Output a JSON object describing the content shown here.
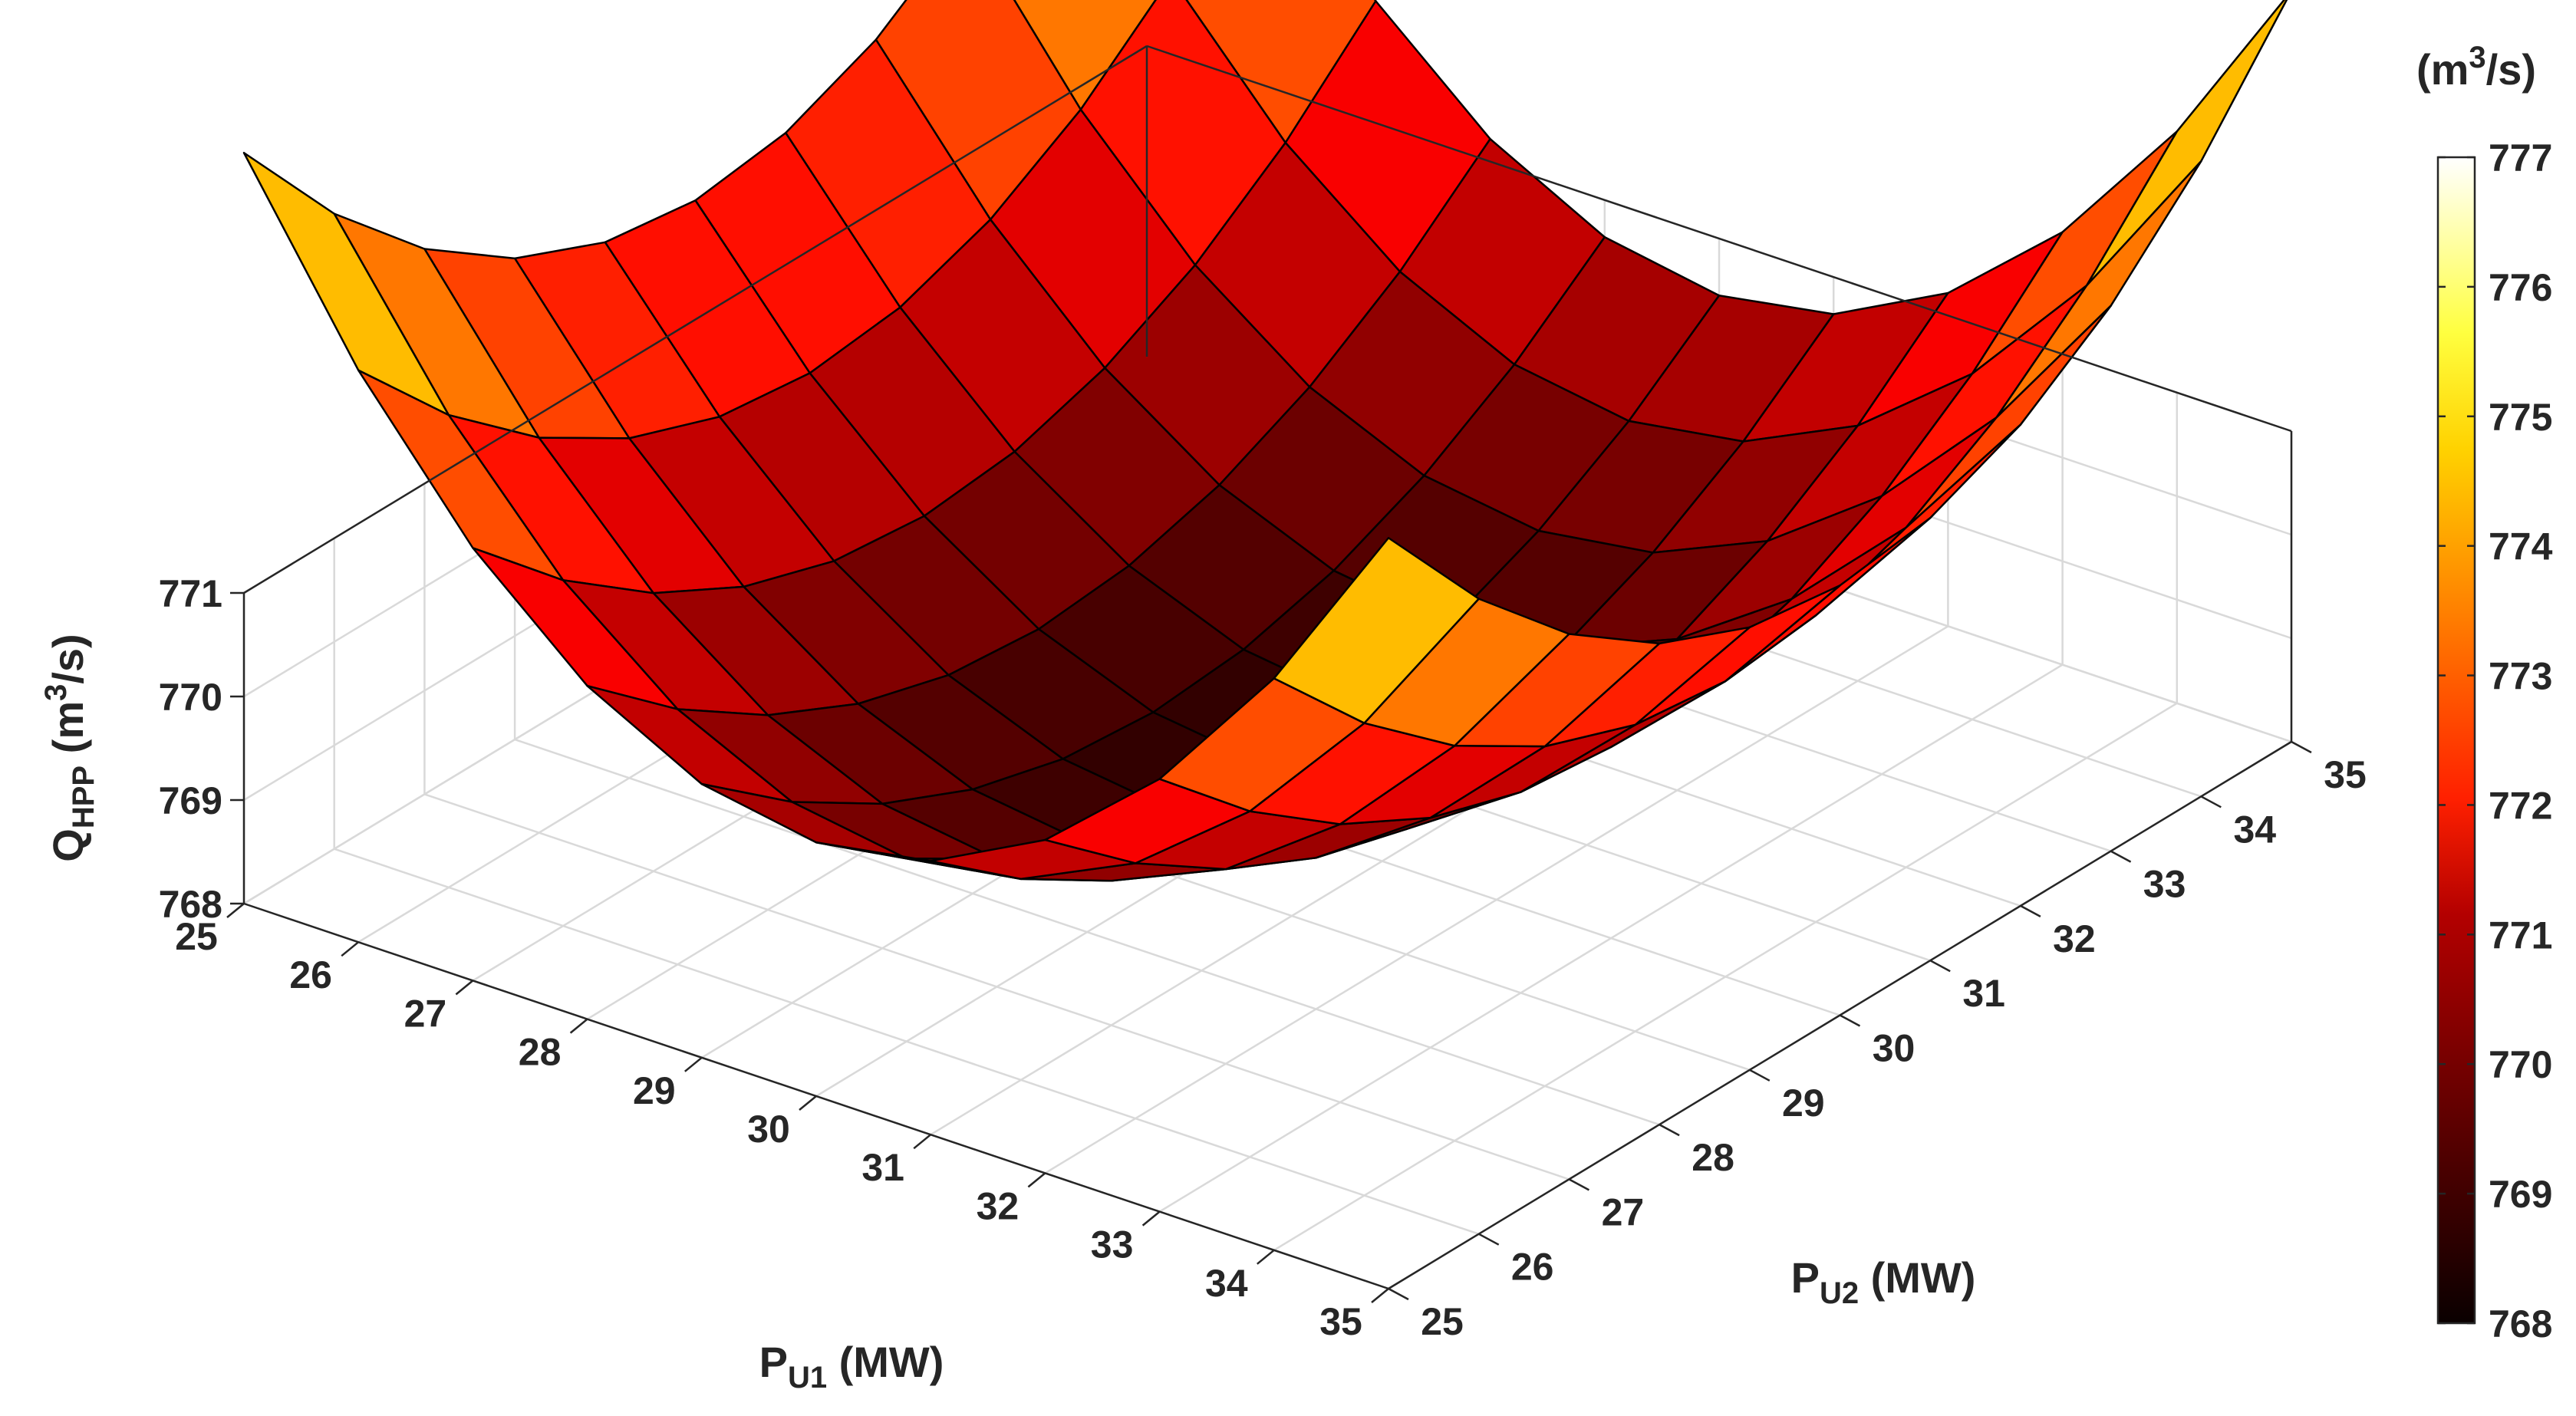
{
  "chart_data": {
    "type": "surface",
    "title": "",
    "x": [
      25,
      26,
      27,
      28,
      29,
      30,
      31,
      32,
      33,
      34,
      35
    ],
    "y": [
      25,
      26,
      27,
      28,
      29,
      30,
      31,
      32,
      33,
      34,
      35
    ],
    "z_formula_note": "",
    "xlabel": {
      "main": "P",
      "sub": "U1",
      "tail": " (MW)"
    },
    "ylabel": {
      "main": "P",
      "sub": "U2",
      "tail": " (MW)"
    },
    "zlabel": {
      "main": "Q",
      "sub": "HPP",
      "tail_pre": " (m",
      "sup": "3",
      "tail_post": "/s)"
    },
    "xlim": [
      25,
      35
    ],
    "ylim": [
      25,
      35
    ],
    "zlim": [
      768,
      771
    ],
    "xticks": [
      "25",
      "26",
      "27",
      "28",
      "29",
      "30",
      "31",
      "32",
      "33",
      "34",
      "35"
    ],
    "yticks": [
      "25",
      "26",
      "27",
      "28",
      "29",
      "30",
      "31",
      "32",
      "33",
      "34",
      "35"
    ],
    "zticks": [
      "768",
      "769",
      "770",
      "771"
    ],
    "grid": true,
    "colormap": "hot",
    "colorbar": {
      "title_pre": "(m",
      "title_sup": "3",
      "title_post": "/s)",
      "range": [
        768,
        777
      ],
      "ticks": [
        "768",
        "769",
        "770",
        "771",
        "772",
        "773",
        "774",
        "775",
        "776",
        "777"
      ],
      "placement": "right"
    }
  }
}
